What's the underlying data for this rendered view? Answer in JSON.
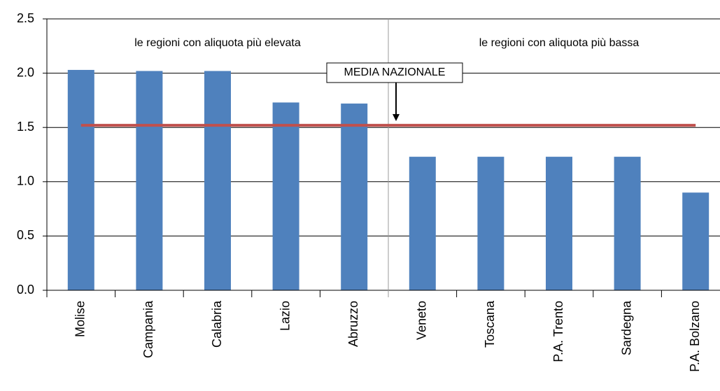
{
  "chart_data": {
    "type": "bar",
    "categories": [
      "Molise",
      "Campania",
      "Calabria",
      "Lazio",
      "Abruzzo",
      "Veneto",
      "Toscana",
      "P.A. Trento",
      "Sardegna",
      "P.A. Bolzano"
    ],
    "values": [
      2.03,
      2.02,
      2.02,
      1.73,
      1.72,
      1.23,
      1.23,
      1.23,
      1.23,
      0.9
    ],
    "color": "#4f81bd",
    "ylim": [
      0,
      2.5
    ],
    "yticks": [
      {
        "value": 0,
        "label": "0.0"
      },
      0.5,
      {
        "value": 1,
        "label": "1.0"
      },
      1.5,
      {
        "value": 2,
        "label": "2.0"
      },
      2.5
    ],
    "grid": true,
    "reference_line": {
      "label": "MEDIA NAZIONALE",
      "value": 1.52,
      "color": "#c0504d"
    },
    "annotations": [
      "le regioni con aliquota più elevata",
      "le regioni con aliquota più bassa"
    ]
  }
}
